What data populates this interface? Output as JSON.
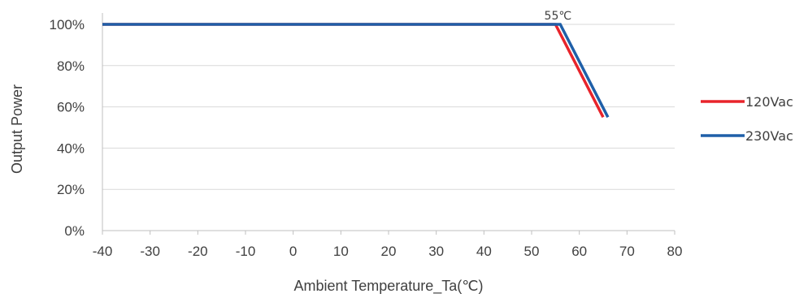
{
  "chart_data": {
    "type": "line",
    "xlabel": "Ambient Temperature_Ta(℃)",
    "ylabel": "Output Power",
    "xlim": [
      -40,
      80
    ],
    "ylim": [
      0,
      100
    ],
    "x_ticks": [
      -40,
      -30,
      -20,
      -10,
      0,
      10,
      20,
      30,
      40,
      50,
      60,
      70,
      80
    ],
    "x_tick_labels": [
      "-40",
      "-30",
      "-20",
      "-10",
      "0",
      "10",
      "20",
      "30",
      "40",
      "50",
      "60",
      "70",
      "80"
    ],
    "y_ticks": [
      0,
      20,
      40,
      60,
      80,
      100
    ],
    "y_tick_labels": [
      "0%",
      "20%",
      "40%",
      "60%",
      "80%",
      "100%"
    ],
    "grid": "horizontal",
    "legend_position": "right",
    "series": [
      {
        "name": "120Vac",
        "color": "#e8242b",
        "points": [
          [
            -40,
            100
          ],
          [
            55,
            100
          ],
          [
            65,
            55
          ]
        ]
      },
      {
        "name": "230Vac",
        "color": "#1f5fa8",
        "points": [
          [
            -40,
            100
          ],
          [
            56,
            100
          ],
          [
            66,
            55
          ]
        ]
      }
    ],
    "annotations": [
      {
        "text": "55℃",
        "x": 55,
        "y": 100
      }
    ]
  }
}
